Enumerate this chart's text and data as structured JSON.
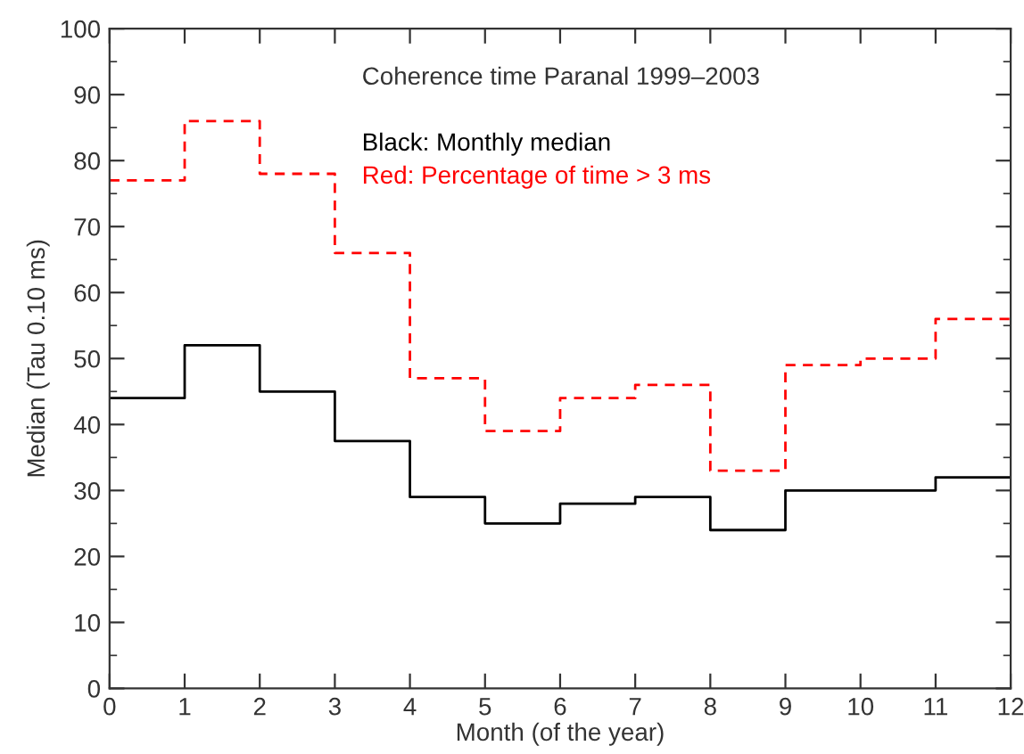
{
  "chart_data": {
    "type": "step",
    "xlabel": "Month (of the year)",
    "ylabel": "Median (Tau 0.10 ms)",
    "x": [
      0,
      1,
      2,
      3,
      4,
      5,
      6,
      7,
      8,
      9,
      10,
      11,
      12
    ],
    "series": [
      {
        "color": "#000000",
        "line_style": "solid",
        "values": [
          44,
          52,
          45,
          37.5,
          29,
          25,
          28,
          29,
          24,
          30,
          30,
          32,
          32
        ]
      },
      {
        "color": "#ff0000",
        "line_style": "dashed",
        "values": [
          77,
          86,
          78,
          66,
          47,
          39,
          44,
          46,
          33,
          49,
          50,
          56,
          56
        ]
      }
    ],
    "annotations": [
      "Coherence time Paranal 1999–2003",
      "Black: Monthly median",
      "Red: Percentage of time > 3 ms"
    ],
    "xlim": [
      0,
      12
    ],
    "xticks": [
      0,
      1,
      2,
      3,
      4,
      5,
      6,
      7,
      8,
      9,
      10,
      11,
      12
    ],
    "ylim": [
      0,
      100
    ],
    "yticks": [
      0,
      10,
      20,
      30,
      40,
      50,
      60,
      70,
      80,
      90,
      100
    ],
    "grid": false,
    "legend": false
  }
}
